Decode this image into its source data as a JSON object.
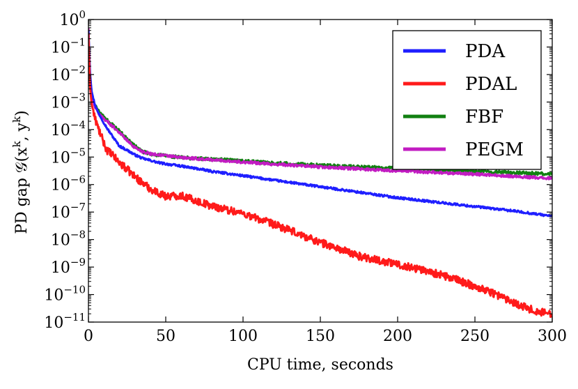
{
  "chart_data": {
    "type": "line",
    "title": "",
    "xlabel": "CPU time,  seconds",
    "ylabel": "PD gap 𝒢(x",
    "ylabel_sup_k": "k",
    "ylabel_mid": ", y",
    "ylabel_sup_k2": "k",
    "ylabel_end": ")",
    "xlim": [
      0,
      300
    ],
    "ylim_log10": [
      -11,
      0
    ],
    "yscale": "log",
    "grid": false,
    "legend_position": "top-right",
    "x_ticks": [
      {
        "value": 0,
        "label": "0"
      },
      {
        "value": 50,
        "label": "50"
      },
      {
        "value": 100,
        "label": "100"
      },
      {
        "value": 150,
        "label": "150"
      },
      {
        "value": 200,
        "label": "200"
      },
      {
        "value": 250,
        "label": "250"
      },
      {
        "value": 300,
        "label": "300"
      }
    ],
    "y_ticks": [
      {
        "exp": 0,
        "base": "10",
        "sup": "0"
      },
      {
        "exp": -1,
        "base": "10",
        "sup": "−1"
      },
      {
        "exp": -2,
        "base": "10",
        "sup": "−2"
      },
      {
        "exp": -3,
        "base": "10",
        "sup": "−3"
      },
      {
        "exp": -4,
        "base": "10",
        "sup": "−4"
      },
      {
        "exp": -5,
        "base": "10",
        "sup": "−5"
      },
      {
        "exp": -6,
        "base": "10",
        "sup": "−6"
      },
      {
        "exp": -7,
        "base": "10",
        "sup": "−7"
      },
      {
        "exp": -8,
        "base": "10",
        "sup": "−8"
      },
      {
        "exp": -9,
        "base": "10",
        "sup": "−9"
      },
      {
        "exp": -10,
        "base": "10",
        "sup": "−10"
      },
      {
        "exp": -11,
        "base": "10",
        "sup": "−11"
      }
    ],
    "series": [
      {
        "name": "PDA",
        "color": "#1f1fff",
        "noise": 0.04,
        "x": [
          0,
          1,
          2,
          4,
          6,
          8,
          10,
          12,
          15,
          20,
          25,
          30,
          35,
          40,
          45,
          50,
          60,
          70,
          80,
          100,
          120,
          150,
          175,
          200,
          225,
          250,
          275,
          300
        ],
        "log10_y": [
          -0.4,
          -1.9,
          -2.6,
          -3.05,
          -3.35,
          -3.55,
          -3.75,
          -3.95,
          -4.2,
          -4.6,
          -4.75,
          -4.92,
          -5.05,
          -5.12,
          -5.2,
          -5.25,
          -5.33,
          -5.42,
          -5.52,
          -5.68,
          -5.84,
          -6.08,
          -6.28,
          -6.48,
          -6.64,
          -6.8,
          -6.96,
          -7.15
        ]
      },
      {
        "name": "PDAL",
        "color": "#ff1a1a",
        "noise": 0.14,
        "x": [
          0,
          1,
          2,
          4,
          6,
          8,
          10,
          12,
          15,
          20,
          25,
          30,
          35,
          40,
          45,
          50,
          60,
          70,
          80,
          100,
          120,
          150,
          175,
          200,
          220,
          240,
          260,
          280,
          290,
          300
        ],
        "log10_y": [
          -0.5,
          -2.4,
          -3.05,
          -3.55,
          -3.9,
          -4.2,
          -4.5,
          -4.75,
          -4.9,
          -5.2,
          -5.45,
          -5.7,
          -5.95,
          -6.15,
          -6.3,
          -6.42,
          -6.4,
          -6.6,
          -6.78,
          -7.05,
          -7.45,
          -8.1,
          -8.6,
          -8.9,
          -9.15,
          -9.5,
          -9.9,
          -10.4,
          -10.62,
          -10.7
        ]
      },
      {
        "name": "FBF",
        "color": "#118011",
        "noise": 0.06,
        "x": [
          0,
          1,
          2,
          4,
          6,
          8,
          10,
          15,
          20,
          25,
          30,
          35,
          40,
          50,
          60,
          80,
          100,
          120,
          150,
          200,
          250,
          300
        ],
        "log10_y": [
          -0.3,
          -2.0,
          -2.6,
          -3.1,
          -3.3,
          -3.45,
          -3.55,
          -3.8,
          -4.05,
          -4.35,
          -4.6,
          -4.8,
          -4.9,
          -4.95,
          -5.02,
          -5.08,
          -5.15,
          -5.22,
          -5.3,
          -5.42,
          -5.52,
          -5.62
        ]
      },
      {
        "name": "PEGM",
        "color": "#c21cc2",
        "noise": 0.05,
        "x": [
          0,
          1,
          2,
          4,
          6,
          8,
          10,
          15,
          20,
          25,
          30,
          35,
          40,
          50,
          60,
          80,
          100,
          120,
          150,
          200,
          250,
          300
        ],
        "log10_y": [
          -0.3,
          -2.05,
          -2.65,
          -3.15,
          -3.38,
          -3.5,
          -3.6,
          -3.85,
          -4.1,
          -4.4,
          -4.65,
          -4.8,
          -4.88,
          -4.95,
          -5.02,
          -5.1,
          -5.18,
          -5.26,
          -5.36,
          -5.5,
          -5.62,
          -5.78
        ]
      }
    ]
  }
}
